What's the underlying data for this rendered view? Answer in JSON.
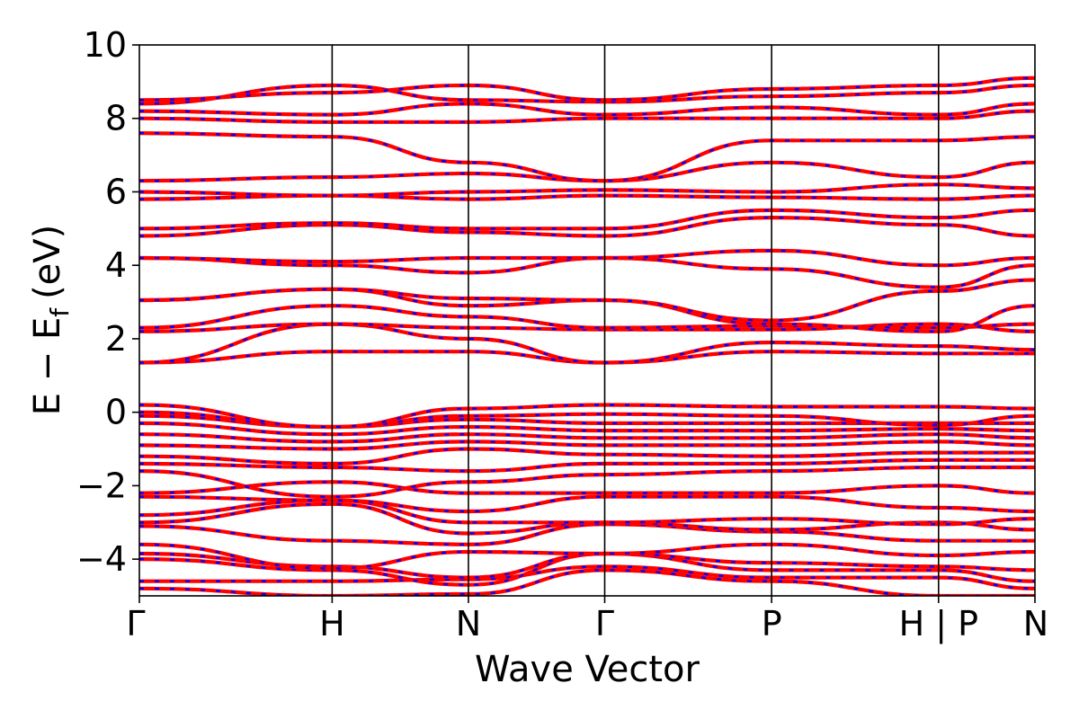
{
  "chart_data": {
    "type": "line",
    "title": "",
    "xlabel": "Wave Vector",
    "ylabel": "E − E",
    "ylabel_subscript": "f",
    "ylabel_unit": "(eV)",
    "ylim": [
      -5,
      10
    ],
    "yticks": [
      -4,
      -2,
      0,
      2,
      4,
      6,
      8,
      10
    ],
    "ytick_labels": [
      "−4",
      "−2",
      "0",
      "2",
      "4",
      "6",
      "8",
      "10"
    ],
    "grid": false,
    "legend": "none",
    "high_symmetry_points": [
      {
        "label": "Γ",
        "k": 0.0
      },
      {
        "label": "H",
        "k": 1.0
      },
      {
        "label": "N",
        "k": 1.707
      },
      {
        "label": "Γ",
        "k": 2.414
      },
      {
        "label": "P",
        "k": 3.28
      },
      {
        "label": "H | P",
        "k": 4.146
      },
      {
        "label": "N",
        "k": 4.646
      }
    ],
    "k_max": 4.646,
    "styles": {
      "spin_up": {
        "color": "#ff0000",
        "style": "solid"
      },
      "spin_down": {
        "color": "#0000ff",
        "style": "dashed"
      }
    },
    "bands": [
      {
        "segments": [
          [
            -4.8,
            -5.0
          ],
          [
            -5.0,
            -4.95
          ],
          [
            -4.95,
            -4.3
          ],
          [
            -4.3,
            -4.6
          ],
          [
            -4.6,
            -5.0
          ],
          [
            -5.0,
            -5.0
          ]
        ]
      },
      {
        "segments": [
          [
            -4.6,
            -4.6
          ],
          [
            -4.6,
            -4.55
          ],
          [
            -4.55,
            -4.2
          ],
          [
            -4.2,
            -4.5
          ],
          [
            -4.5,
            -4.5
          ],
          [
            -4.5,
            -4.8
          ]
        ]
      },
      {
        "segments": [
          [
            -4.0,
            -4.3
          ],
          [
            -4.3,
            -4.7
          ],
          [
            -4.7,
            -3.85
          ],
          [
            -3.85,
            -4.3
          ],
          [
            -4.3,
            -4.3
          ],
          [
            -4.3,
            -4.6
          ]
        ]
      },
      {
        "segments": [
          [
            -3.85,
            -4.2
          ],
          [
            -4.2,
            -4.5
          ],
          [
            -4.5,
            -3.85
          ],
          [
            -3.85,
            -4.1
          ],
          [
            -4.1,
            -4.2
          ],
          [
            -4.2,
            -4.3
          ]
        ]
      },
      {
        "segments": [
          [
            -3.6,
            -4.25
          ],
          [
            -4.25,
            -3.8
          ],
          [
            -3.8,
            -3.85
          ],
          [
            -3.85,
            -3.6
          ],
          [
            -3.6,
            -3.9
          ],
          [
            -3.9,
            -3.8
          ]
        ]
      },
      {
        "segments": [
          [
            -3.1,
            -3.5
          ],
          [
            -3.5,
            -3.6
          ],
          [
            -3.6,
            -3.05
          ],
          [
            -3.05,
            -3.25
          ],
          [
            -3.25,
            -3.5
          ],
          [
            -3.5,
            -3.5
          ]
        ]
      },
      {
        "segments": [
          [
            -3.0,
            -2.5
          ],
          [
            -2.5,
            -3.3
          ],
          [
            -3.3,
            -3.0
          ],
          [
            -3.0,
            -3.2
          ],
          [
            -3.2,
            -3.0
          ],
          [
            -3.0,
            -3.2
          ]
        ]
      },
      {
        "segments": [
          [
            -2.8,
            -2.4
          ],
          [
            -2.4,
            -3.0
          ],
          [
            -3.0,
            -3.0
          ],
          [
            -3.0,
            -2.9
          ],
          [
            -2.9,
            -3.05
          ],
          [
            -3.05,
            -2.9
          ]
        ]
      },
      {
        "segments": [
          [
            -2.3,
            -2.4
          ],
          [
            -2.4,
            -2.7
          ],
          [
            -2.7,
            -2.3
          ],
          [
            -2.3,
            -2.3
          ],
          [
            -2.3,
            -2.6
          ],
          [
            -2.6,
            -2.7
          ]
        ]
      },
      {
        "segments": [
          [
            -2.2,
            -1.9
          ],
          [
            -1.9,
            -2.2
          ],
          [
            -2.2,
            -2.2
          ],
          [
            -2.2,
            -2.2
          ],
          [
            -2.2,
            -2.0
          ],
          [
            -2.0,
            -2.2
          ]
        ]
      },
      {
        "segments": [
          [
            -1.6,
            -2.3
          ],
          [
            -2.3,
            -1.9
          ],
          [
            -1.9,
            -1.7
          ],
          [
            -1.7,
            -1.6
          ],
          [
            -1.6,
            -1.5
          ],
          [
            -1.5,
            -1.5
          ]
        ]
      },
      {
        "segments": [
          [
            -1.4,
            -1.5
          ],
          [
            -1.5,
            -1.6
          ],
          [
            -1.6,
            -1.4
          ],
          [
            -1.4,
            -1.4
          ],
          [
            -1.4,
            -1.3
          ],
          [
            -1.3,
            -1.3
          ]
        ]
      },
      {
        "segments": [
          [
            -1.2,
            -1.4
          ],
          [
            -1.4,
            -1.0
          ],
          [
            -1.0,
            -1.15
          ],
          [
            -1.15,
            -1.2
          ],
          [
            -1.2,
            -1.1
          ],
          [
            -1.1,
            -1.1
          ]
        ]
      },
      {
        "segments": [
          [
            -0.9,
            -1.0
          ],
          [
            -1.0,
            -0.8
          ],
          [
            -0.8,
            -0.9
          ],
          [
            -0.9,
            -0.9
          ],
          [
            -0.9,
            -0.8
          ],
          [
            -0.8,
            -0.9
          ]
        ]
      },
      {
        "segments": [
          [
            -0.6,
            -0.8
          ],
          [
            -0.8,
            -0.6
          ],
          [
            -0.6,
            -0.7
          ],
          [
            -0.7,
            -0.7
          ],
          [
            -0.7,
            -0.6
          ],
          [
            -0.6,
            -0.7
          ]
        ]
      },
      {
        "segments": [
          [
            -0.3,
            -0.6
          ],
          [
            -0.6,
            -0.4
          ],
          [
            -0.4,
            -0.5
          ],
          [
            -0.5,
            -0.5
          ],
          [
            -0.5,
            -0.45
          ],
          [
            -0.45,
            -0.5
          ]
        ]
      },
      {
        "segments": [
          [
            -0.1,
            -0.4
          ],
          [
            -0.4,
            -0.2
          ],
          [
            -0.2,
            -0.3
          ],
          [
            -0.3,
            -0.3
          ],
          [
            -0.3,
            -0.3
          ],
          [
            -0.3,
            -0.3
          ]
        ]
      },
      {
        "segments": [
          [
            0.0,
            -0.4
          ],
          [
            -0.4,
            -0.1
          ],
          [
            -0.1,
            -0.05
          ],
          [
            -0.05,
            -0.1
          ],
          [
            -0.1,
            -0.35
          ],
          [
            -0.35,
            -0.1
          ]
        ]
      },
      {
        "segments": [
          [
            0.2,
            -0.4
          ],
          [
            -0.4,
            0.1
          ],
          [
            0.1,
            0.2
          ],
          [
            0.2,
            0.15
          ],
          [
            0.15,
            0.15
          ],
          [
            0.15,
            0.1
          ]
        ]
      },
      {
        "segments": [
          [
            1.35,
            1.65
          ],
          [
            1.65,
            1.65
          ],
          [
            1.65,
            1.35
          ],
          [
            1.35,
            1.65
          ],
          [
            1.65,
            1.6
          ],
          [
            1.6,
            1.6
          ]
        ]
      },
      {
        "segments": [
          [
            1.35,
            2.4
          ],
          [
            2.4,
            2.0
          ],
          [
            2.0,
            1.35
          ],
          [
            1.35,
            1.9
          ],
          [
            1.9,
            1.8
          ],
          [
            1.8,
            1.7
          ]
        ]
      },
      {
        "segments": [
          [
            2.2,
            2.4
          ],
          [
            2.4,
            2.3
          ],
          [
            2.3,
            2.25
          ],
          [
            2.25,
            2.25
          ],
          [
            2.25,
            2.4
          ],
          [
            2.4,
            2.2
          ]
        ]
      },
      {
        "segments": [
          [
            2.3,
            2.9
          ],
          [
            2.9,
            2.6
          ],
          [
            2.6,
            2.3
          ],
          [
            2.3,
            2.35
          ],
          [
            2.35,
            2.3
          ],
          [
            2.3,
            2.4
          ]
        ]
      },
      {
        "segments": [
          [
            3.05,
            3.35
          ],
          [
            3.35,
            2.9
          ],
          [
            2.9,
            3.05
          ],
          [
            3.05,
            2.4
          ],
          [
            2.4,
            2.2
          ],
          [
            2.2,
            2.9
          ]
        ]
      },
      {
        "segments": [
          [
            3.05,
            3.35
          ],
          [
            3.35,
            3.1
          ],
          [
            3.1,
            3.05
          ],
          [
            3.05,
            2.5
          ],
          [
            2.5,
            3.3
          ],
          [
            3.3,
            3.6
          ]
        ]
      },
      {
        "segments": [
          [
            4.2,
            4.0
          ],
          [
            4.0,
            3.8
          ],
          [
            3.8,
            4.2
          ],
          [
            4.2,
            3.9
          ],
          [
            3.9,
            3.4
          ],
          [
            3.4,
            4.0
          ]
        ]
      },
      {
        "segments": [
          [
            4.2,
            4.1
          ],
          [
            4.1,
            4.2
          ],
          [
            4.2,
            4.2
          ],
          [
            4.2,
            4.4
          ],
          [
            4.4,
            4.0
          ],
          [
            4.0,
            4.2
          ]
        ]
      },
      {
        "segments": [
          [
            4.8,
            5.1
          ],
          [
            5.1,
            4.9
          ],
          [
            4.9,
            4.8
          ],
          [
            4.8,
            5.3
          ],
          [
            5.3,
            5.1
          ],
          [
            5.1,
            4.8
          ]
        ]
      },
      {
        "segments": [
          [
            5.0,
            5.15
          ],
          [
            5.15,
            5.0
          ],
          [
            5.0,
            5.0
          ],
          [
            5.0,
            5.5
          ],
          [
            5.5,
            5.3
          ],
          [
            5.3,
            5.5
          ]
        ]
      },
      {
        "segments": [
          [
            5.8,
            5.9
          ],
          [
            5.9,
            5.8
          ],
          [
            5.8,
            5.9
          ],
          [
            5.9,
            5.85
          ],
          [
            5.85,
            5.8
          ],
          [
            5.8,
            5.9
          ]
        ]
      },
      {
        "segments": [
          [
            6.0,
            5.9
          ],
          [
            5.9,
            6.0
          ],
          [
            6.0,
            6.05
          ],
          [
            6.05,
            6.0
          ],
          [
            6.0,
            6.2
          ],
          [
            6.2,
            6.1
          ]
        ]
      },
      {
        "segments": [
          [
            6.3,
            6.4
          ],
          [
            6.4,
            6.5
          ],
          [
            6.5,
            6.3
          ],
          [
            6.3,
            6.8
          ],
          [
            6.8,
            6.4
          ],
          [
            6.4,
            6.8
          ]
        ]
      },
      {
        "segments": [
          [
            7.6,
            7.5
          ],
          [
            7.5,
            6.8
          ],
          [
            6.8,
            6.3
          ],
          [
            6.3,
            7.4
          ],
          [
            7.4,
            7.4
          ],
          [
            7.4,
            7.5
          ]
        ]
      },
      {
        "segments": [
          [
            8.0,
            7.9
          ],
          [
            7.9,
            7.9
          ],
          [
            7.9,
            8.0
          ],
          [
            8.0,
            8.0
          ],
          [
            8.0,
            8.0
          ],
          [
            8.0,
            8.2
          ]
        ]
      },
      {
        "segments": [
          [
            8.2,
            8.1
          ],
          [
            8.1,
            8.4
          ],
          [
            8.4,
            8.1
          ],
          [
            8.1,
            8.3
          ],
          [
            8.3,
            8.1
          ],
          [
            8.1,
            8.4
          ]
        ]
      },
      {
        "segments": [
          [
            8.4,
            8.9
          ],
          [
            8.9,
            8.5
          ],
          [
            8.5,
            8.45
          ],
          [
            8.45,
            8.6
          ],
          [
            8.6,
            8.7
          ],
          [
            8.7,
            8.9
          ]
        ]
      },
      {
        "segments": [
          [
            8.5,
            8.7
          ],
          [
            8.7,
            8.9
          ],
          [
            8.9,
            8.5
          ],
          [
            8.5,
            8.8
          ],
          [
            8.8,
            8.9
          ],
          [
            8.9,
            9.1
          ]
        ]
      }
    ]
  }
}
